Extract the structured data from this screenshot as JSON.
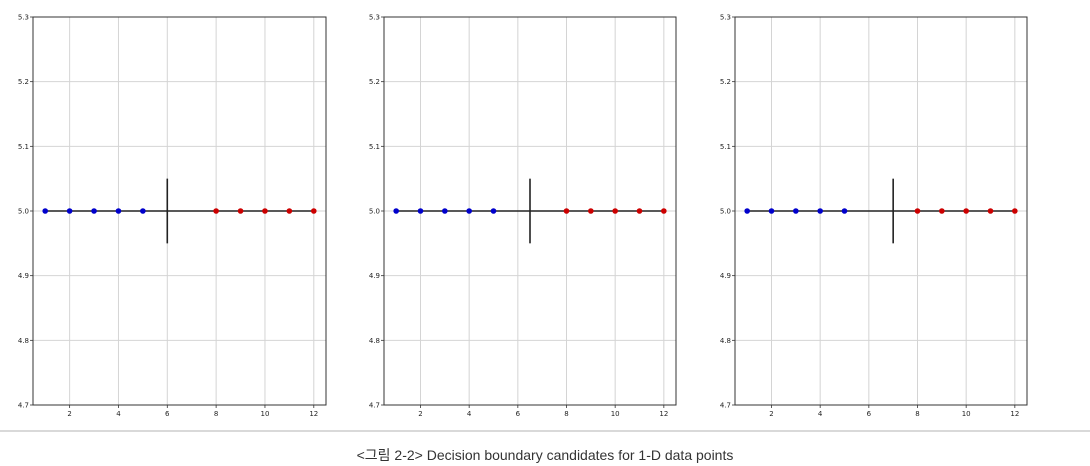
{
  "chart_data": [
    {
      "type": "scatter",
      "xlim": [
        0.5,
        12.5
      ],
      "ylim": [
        4.7,
        5.3
      ],
      "x_ticks": [
        "2",
        "4",
        "6",
        "8",
        "10",
        "12"
      ],
      "y_ticks": [
        "4.7",
        "4.8",
        "4.9",
        "5.0",
        "5.1",
        "5.2",
        "5.3"
      ],
      "grid": true,
      "series": [
        {
          "color": "#0000cc",
          "x": [
            1,
            2,
            3,
            4,
            5
          ],
          "y": [
            5.0,
            5.0,
            5.0,
            5.0,
            5.0
          ]
        },
        {
          "color": "#cc0000",
          "x": [
            8,
            9,
            10,
            11,
            12
          ],
          "y": [
            5.0,
            5.0,
            5.0,
            5.0,
            5.0
          ]
        }
      ],
      "baseline": {
        "y": 5.0,
        "x_from": 1,
        "x_to": 12
      },
      "boundary": {
        "x": 6.0,
        "y_from": 4.95,
        "y_to": 5.05
      }
    },
    {
      "type": "scatter",
      "xlim": [
        0.5,
        12.5
      ],
      "ylim": [
        4.7,
        5.3
      ],
      "x_ticks": [
        "2",
        "4",
        "6",
        "8",
        "10",
        "12"
      ],
      "y_ticks": [
        "4.7",
        "4.8",
        "4.9",
        "5.0",
        "5.1",
        "5.2",
        "5.3"
      ],
      "grid": true,
      "series": [
        {
          "color": "#0000cc",
          "x": [
            1,
            2,
            3,
            4,
            5
          ],
          "y": [
            5.0,
            5.0,
            5.0,
            5.0,
            5.0
          ]
        },
        {
          "color": "#cc0000",
          "x": [
            8,
            9,
            10,
            11,
            12
          ],
          "y": [
            5.0,
            5.0,
            5.0,
            5.0,
            5.0
          ]
        }
      ],
      "baseline": {
        "y": 5.0,
        "x_from": 1,
        "x_to": 12
      },
      "boundary": {
        "x": 6.5,
        "y_from": 4.95,
        "y_to": 5.05
      }
    },
    {
      "type": "scatter",
      "xlim": [
        0.5,
        12.5
      ],
      "ylim": [
        4.7,
        5.3
      ],
      "x_ticks": [
        "2",
        "4",
        "6",
        "8",
        "10",
        "12"
      ],
      "y_ticks": [
        "4.7",
        "4.8",
        "4.9",
        "5.0",
        "5.1",
        "5.2",
        "5.3"
      ],
      "grid": true,
      "series": [
        {
          "color": "#0000cc",
          "x": [
            1,
            2,
            3,
            4,
            5
          ],
          "y": [
            5.0,
            5.0,
            5.0,
            5.0,
            5.0
          ]
        },
        {
          "color": "#cc0000",
          "x": [
            8,
            9,
            10,
            11,
            12
          ],
          "y": [
            5.0,
            5.0,
            5.0,
            5.0,
            5.0
          ]
        }
      ],
      "baseline": {
        "y": 5.0,
        "x_from": 1,
        "x_to": 12
      },
      "boundary": {
        "x": 7.0,
        "y_from": 4.95,
        "y_to": 5.05
      }
    }
  ],
  "caption": "<그림 2-2> Decision boundary candidates for 1-D data points"
}
